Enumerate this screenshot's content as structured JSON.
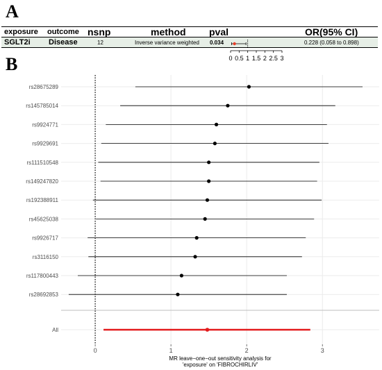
{
  "panel_a": {
    "letter": "A",
    "headers": {
      "exposure": "exposure",
      "outcome": "outcome",
      "nsnp": "nsnp",
      "method": "method",
      "pval": "pval",
      "or": "OR(95% CI)"
    },
    "row": {
      "exposure": "SGLT2i",
      "outcome": "Disease",
      "nsnp": "12",
      "method": "Inverse variance weighted",
      "pval": "0.034",
      "or": "0.228 (0.058 to 0.898)"
    },
    "mini_forest": {
      "estimate": 0.228,
      "lower": 0.058,
      "upper": 0.898,
      "reference": 1,
      "ticks": [
        0,
        0.5,
        1,
        1.5,
        2,
        2.5,
        3
      ],
      "tick_labels": [
        "0",
        "0.5",
        "1",
        "1.5",
        "2",
        "2.5",
        "3"
      ],
      "xlim": [
        0,
        3
      ],
      "point_color": "#e8402a"
    }
  },
  "chart_data": {
    "letter": "B",
    "type": "forest",
    "xlabel_lines": [
      "MR leave−one−out sensitivity analysis for",
      "'exposure' on 'FIBROCHIRLIV'"
    ],
    "xlim": [
      -0.45,
      3.75
    ],
    "xticks": [
      0,
      1,
      2,
      3
    ],
    "xtick_labels": [
      "0",
      "1",
      "2",
      "3"
    ],
    "reference_line": 0,
    "grid": true,
    "snps": [
      {
        "label": "rs28675289",
        "estimate": 2.03,
        "lower": 0.53,
        "upper": 3.53
      },
      {
        "label": "rs145785014",
        "estimate": 1.75,
        "lower": 0.33,
        "upper": 3.17
      },
      {
        "label": "rs9924771",
        "estimate": 1.6,
        "lower": 0.14,
        "upper": 3.06
      },
      {
        "label": "rs9929691",
        "estimate": 1.58,
        "lower": 0.08,
        "upper": 3.08
      },
      {
        "label": "rs111510548",
        "estimate": 1.5,
        "lower": 0.04,
        "upper": 2.96
      },
      {
        "label": "rs149247820",
        "estimate": 1.5,
        "lower": 0.07,
        "upper": 2.93
      },
      {
        "label": "rs192388911",
        "estimate": 1.48,
        "lower": -0.03,
        "upper": 2.99
      },
      {
        "label": "rs45625038",
        "estimate": 1.45,
        "lower": 0.01,
        "upper": 2.89
      },
      {
        "label": "rs9926717",
        "estimate": 1.34,
        "lower": -0.1,
        "upper": 2.78
      },
      {
        "label": "rs3116150",
        "estimate": 1.32,
        "lower": -0.09,
        "upper": 2.73
      },
      {
        "label": "rs117800443",
        "estimate": 1.14,
        "lower": -0.23,
        "upper": 2.53
      },
      {
        "label": "rs28692853",
        "estimate": 1.09,
        "lower": -0.35,
        "upper": 2.53
      }
    ],
    "overall": {
      "label": "All",
      "estimate": 1.48,
      "lower": 0.11,
      "upper": 2.84
    },
    "overall_color": "#e31a1c"
  }
}
